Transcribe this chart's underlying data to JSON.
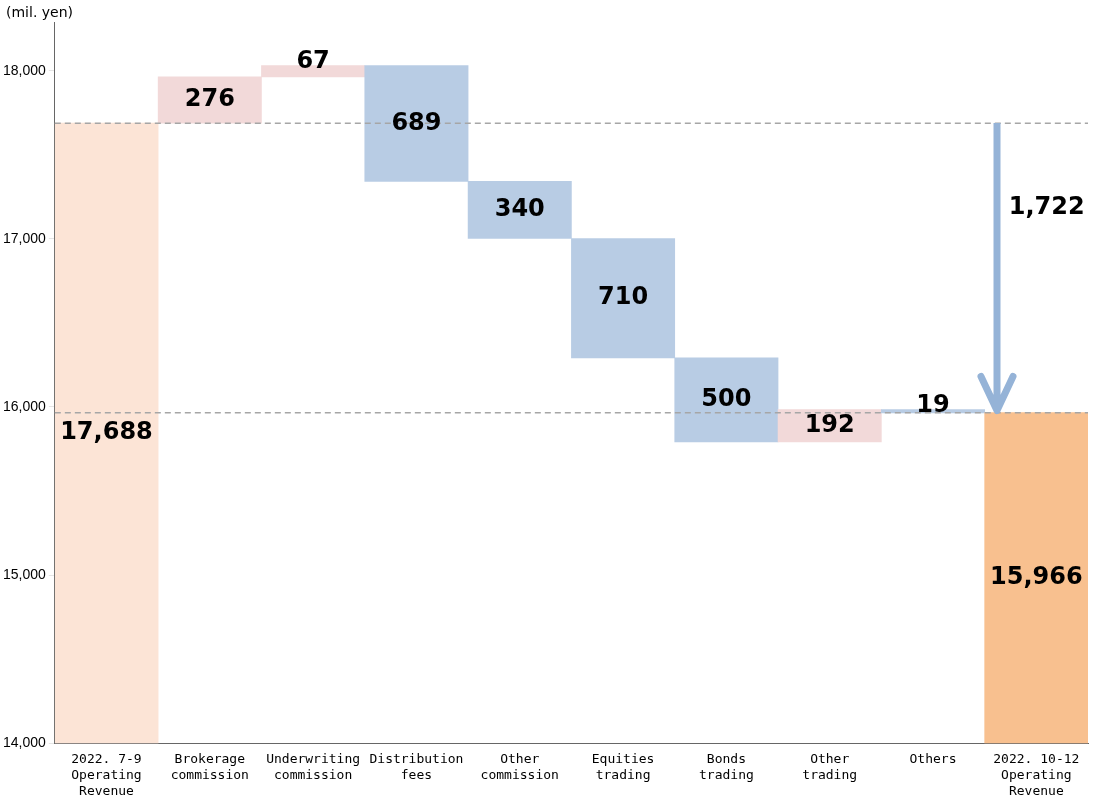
{
  "chart_data": {
    "type": "bar",
    "ylabel": "(mil. yen)",
    "categories": [
      "2022. 7-9\nOperating\nRevenue",
      "Brokerage\ncommission",
      "Underwriting\ncommission",
      "Distribution\nfees",
      "Other\ncommission",
      "Equities\ntrading",
      "Bonds\ntrading",
      "Other\ntrading",
      "Others",
      "2022. 10-12\nOperating\nRevenue"
    ],
    "values": [
      17688,
      276,
      67,
      -689,
      -340,
      -710,
      -500,
      192,
      -19,
      15966
    ],
    "base": [
      0,
      17688,
      17964,
      18031,
      17342,
      17002,
      16292,
      15792,
      15984,
      0
    ],
    "colors": [
      "#fce4d6",
      "#f2d9d9",
      "#f2d9d9",
      "#b8cce4",
      "#b8cce4",
      "#b8cce4",
      "#b8cce4",
      "#f2d9d9",
      "#b8cce4",
      "#f8c08f"
    ],
    "value_labels": [
      "17,688",
      "276",
      "67",
      "689",
      "340",
      "710",
      "500",
      "192",
      "19",
      "15,966"
    ],
    "ylim": [
      14000,
      18290
    ],
    "yticks": [
      {
        "value": 14000,
        "label": "14,000"
      },
      {
        "value": 15000,
        "label": "15,000"
      },
      {
        "value": 16000,
        "label": "16,000"
      },
      {
        "value": 17000,
        "label": "17,000"
      },
      {
        "value": 18000,
        "label": "18,000"
      }
    ],
    "ref_lines": [
      {
        "axis": "y",
        "value": 17688,
        "color": "#a6a6a6",
        "line_style": "dashed"
      },
      {
        "axis": "y",
        "value": 15966,
        "color": "#a6a6a6",
        "line_style": "dashed"
      }
    ],
    "annotations": [
      "1,722"
    ],
    "grid": false,
    "legend": false
  }
}
